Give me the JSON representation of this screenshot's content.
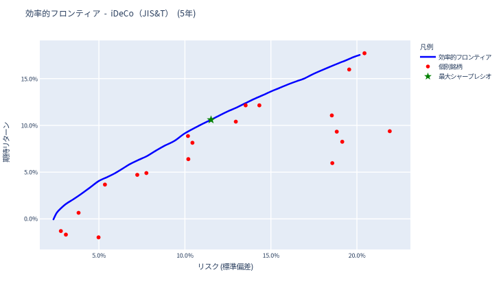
{
  "page": {
    "background": "#ffffff"
  },
  "chart_data": {
    "type": "scatter",
    "title": "効率的フロンティア - iDeCo（JIS&T） (5年)",
    "xlabel": "リスク (標準偏差)",
    "ylabel": "期待リターン",
    "plot_bgcolor": "#e5ecf6",
    "grid_color": "#ffffff",
    "text_color": "#2a3f5f",
    "grid": true,
    "legend_position": "right",
    "xlim": [
      1.565,
      23.11
    ],
    "ylim": [
      -3.27,
      19.08
    ],
    "x_ticks": [
      {
        "value": 5,
        "label": "5.0%"
      },
      {
        "value": 10,
        "label": "10.0%"
      },
      {
        "value": 15,
        "label": "15.0%"
      },
      {
        "value": 20,
        "label": "20.0%"
      }
    ],
    "y_ticks": [
      {
        "value": 0,
        "label": "0.0%"
      },
      {
        "value": 5,
        "label": "5.0%"
      },
      {
        "value": 10,
        "label": "10.0%"
      },
      {
        "value": 15,
        "label": "15.0%"
      }
    ],
    "legend": {
      "title": "凡例"
    },
    "series": [
      {
        "name": "効率的フロンティア",
        "type": "line",
        "color": "#0000ff",
        "line_width": 2.5,
        "points": [
          [
            2.36,
            -0.05
          ],
          [
            2.55,
            0.65
          ],
          [
            2.8,
            1.15
          ],
          [
            3.1,
            1.62
          ],
          [
            3.5,
            2.08
          ],
          [
            4.0,
            2.7
          ],
          [
            4.5,
            3.38
          ],
          [
            5.0,
            4.06
          ],
          [
            5.5,
            4.48
          ],
          [
            5.9,
            4.85
          ],
          [
            6.4,
            5.4
          ],
          [
            6.8,
            5.85
          ],
          [
            7.3,
            6.3
          ],
          [
            7.8,
            6.72
          ],
          [
            8.3,
            7.28
          ],
          [
            8.8,
            7.8
          ],
          [
            9.4,
            8.35
          ],
          [
            10.0,
            9.15
          ],
          [
            10.8,
            9.95
          ],
          [
            11.52,
            10.6
          ],
          [
            12.0,
            11.05
          ],
          [
            12.5,
            11.5
          ],
          [
            13.0,
            11.9
          ],
          [
            13.5,
            12.35
          ],
          [
            14.0,
            12.8
          ],
          [
            14.5,
            13.2
          ],
          [
            15.0,
            13.62
          ],
          [
            15.5,
            14.0
          ],
          [
            16.0,
            14.38
          ],
          [
            16.5,
            14.72
          ],
          [
            16.93,
            15.0
          ],
          [
            17.4,
            15.44
          ],
          [
            17.9,
            15.85
          ],
          [
            18.4,
            16.24
          ],
          [
            18.9,
            16.62
          ],
          [
            19.4,
            16.98
          ],
          [
            19.8,
            17.3
          ],
          [
            20.16,
            17.53
          ]
        ]
      },
      {
        "name": "個別銘柄",
        "type": "scatter",
        "marker": "circle",
        "color": "#ff0000",
        "marker_size": 5.8,
        "points": [
          [
            2.79,
            -1.3
          ],
          [
            3.08,
            -1.68
          ],
          [
            3.82,
            0.65
          ],
          [
            4.98,
            -1.97
          ],
          [
            5.35,
            3.67
          ],
          [
            7.23,
            4.71
          ],
          [
            7.76,
            4.9
          ],
          [
            10.18,
            8.86
          ],
          [
            10.44,
            8.14
          ],
          [
            10.2,
            6.39
          ],
          [
            12.96,
            10.4
          ],
          [
            13.53,
            12.14
          ],
          [
            14.33,
            12.14
          ],
          [
            18.54,
            11.06
          ],
          [
            18.57,
            5.96
          ],
          [
            18.83,
            9.33
          ],
          [
            19.15,
            8.25
          ],
          [
            19.55,
            15.97
          ],
          [
            20.44,
            17.71
          ],
          [
            21.91,
            9.38
          ]
        ]
      },
      {
        "name": "最大シャープレシオ",
        "type": "scatter",
        "marker": "star",
        "color": "#008000",
        "marker_size": 13,
        "points": [
          [
            11.52,
            10.6
          ]
        ]
      }
    ]
  }
}
